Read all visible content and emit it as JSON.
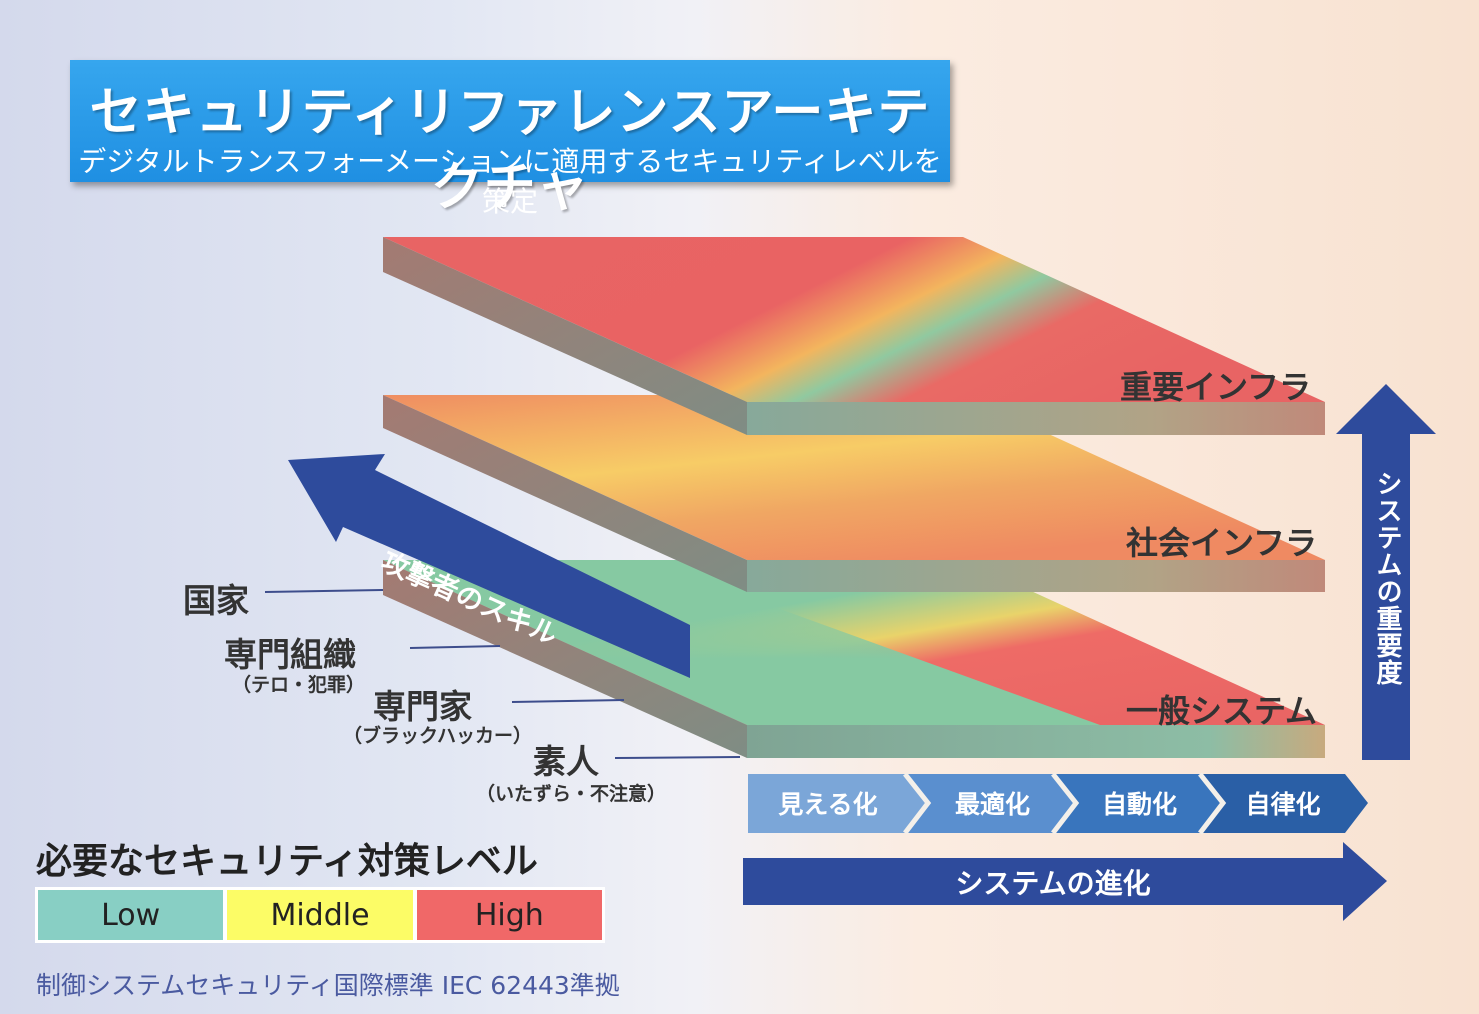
{
  "title": {
    "main": "セキュリティリファレンスアーキテクチャ",
    "sub": "デジタルトランスフォーメーションに適用するセキュリティレベルを策定"
  },
  "layers": [
    {
      "label": "重要インフラ"
    },
    {
      "label": "社会インフラ"
    },
    {
      "label": "一般システム"
    }
  ],
  "attacker": {
    "arrow_label": "攻撃者のスキル",
    "levels": [
      {
        "label": "国家",
        "sub": ""
      },
      {
        "label": "専門組織",
        "sub": "（テロ・犯罪）"
      },
      {
        "label": "専門家",
        "sub": "（ブラックハッカー）"
      },
      {
        "label": "素人",
        "sub": "（いたずら・不注意）"
      }
    ]
  },
  "importance_arrow_label": "システムの重要度",
  "evolution": {
    "stages": [
      "見える化",
      "最適化",
      "自動化",
      "自律化"
    ],
    "arrow_label": "システムの進化"
  },
  "legend": {
    "title": "必要なセキュリティ対策レベル",
    "items": [
      {
        "label": "Low",
        "color": "#88cfc4"
      },
      {
        "label": "Middle",
        "color": "#fcfc66"
      },
      {
        "label": "High",
        "color": "#f06868"
      }
    ]
  },
  "footnote": "制御システムセキュリティ国際標準 IEC 62443準拠",
  "colors": {
    "title_bg": "#1f8fe2",
    "arrow_blue": "#2e4b9c",
    "stage_colors": [
      "#7ba6d8",
      "#5a8fcf",
      "#3975bd",
      "#2a5fa6"
    ]
  }
}
